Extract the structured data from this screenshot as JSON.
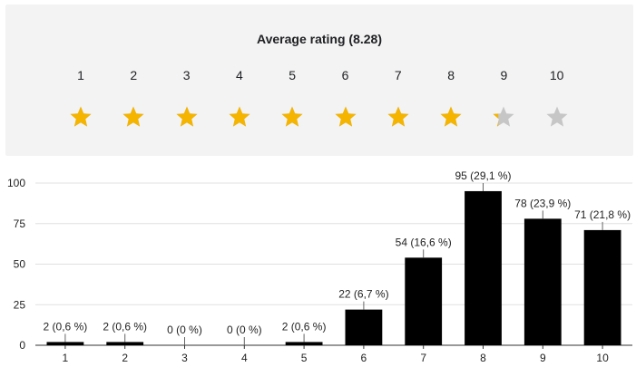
{
  "rating": {
    "title": "Average rating (8.28)",
    "average": 8.28,
    "max": 10,
    "labels": [
      "1",
      "2",
      "3",
      "4",
      "5",
      "6",
      "7",
      "8",
      "9",
      "10"
    ],
    "colors": {
      "filled": "#f4b400",
      "empty": "#c6c6c6"
    }
  },
  "chart_data": {
    "type": "bar",
    "categories": [
      "1",
      "2",
      "3",
      "4",
      "5",
      "6",
      "7",
      "8",
      "9",
      "10"
    ],
    "values": [
      2,
      2,
      0,
      0,
      2,
      22,
      54,
      95,
      78,
      71
    ],
    "data_labels": [
      "2 (0,6 %)",
      "2 (0,6 %)",
      "0 (0 %)",
      "0 (0 %)",
      "2 (0,6 %)",
      "22 (6,7 %)",
      "54 (16,6 %)",
      "95 (29,1 %)",
      "78 (23,9 %)",
      "71 (21,8 %)"
    ],
    "ylim": [
      0,
      100
    ],
    "yticks": [
      0,
      25,
      50,
      75,
      100
    ],
    "grid": true,
    "bar_color": "#000000"
  }
}
